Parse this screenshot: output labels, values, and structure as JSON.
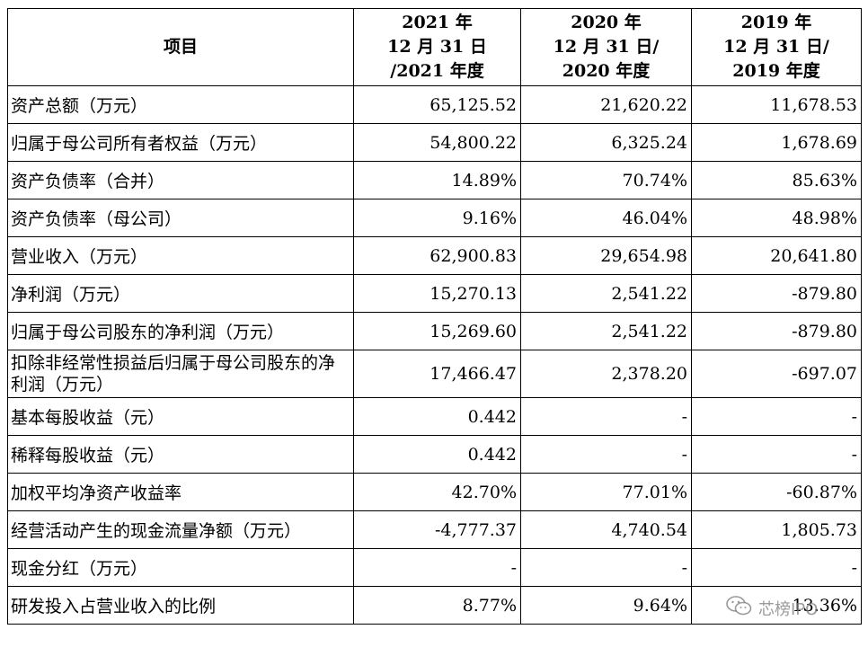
{
  "headers": [
    [
      "项目"
    ],
    [
      "2021 年",
      "12 月 31 日",
      "/2021 年度"
    ],
    [
      "2020 年",
      "12 月 31 日/",
      "2020 年度"
    ],
    [
      "2019 年",
      "12 月 31 日/",
      "2019 年度"
    ]
  ],
  "rows": [
    {
      "label": "资产总额（万元）",
      "v2021": "65,125.52",
      "v2020": "21,620.22",
      "v2019": "11,678.53"
    },
    {
      "label": "归属于母公司所有者权益（万元）",
      "v2021": "54,800.22",
      "v2020": "6,325.24",
      "v2019": "1,678.69"
    },
    {
      "label": "资产负债率（合并）",
      "v2021": "14.89%",
      "v2020": "70.74%",
      "v2019": "85.63%"
    },
    {
      "label": "资产负债率（母公司）",
      "v2021": "9.16%",
      "v2020": "46.04%",
      "v2019": "48.98%"
    },
    {
      "label": "营业收入（万元）",
      "v2021": "62,900.83",
      "v2020": "29,654.98",
      "v2019": "20,641.80"
    },
    {
      "label": "净利润（万元）",
      "v2021": "15,270.13",
      "v2020": "2,541.22",
      "v2019": "-879.80"
    },
    {
      "label": "归属于母公司股东的净利润（万元）",
      "v2021": "15,269.60",
      "v2020": "2,541.22",
      "v2019": "-879.80"
    },
    {
      "label": "扣除非经常性损益后归属于母公司股东的净利润（万元）",
      "v2021": "17,466.47",
      "v2020": "2,378.20",
      "v2019": "-697.07"
    },
    {
      "label": "基本每股收益（元）",
      "v2021": "0.442",
      "v2020": "-",
      "v2019": "-"
    },
    {
      "label": "稀释每股收益（元）",
      "v2021": "0.442",
      "v2020": "-",
      "v2019": "-"
    },
    {
      "label": "加权平均净资产收益率",
      "v2021": "42.70%",
      "v2020": "77.01%",
      "v2019": "-60.87%"
    },
    {
      "label": "经营活动产生的现金流量净额（万元）",
      "v2021": "-4,777.37",
      "v2020": "4,740.54",
      "v2019": "1,805.73"
    },
    {
      "label": "现金分红（万元）",
      "v2021": "-",
      "v2020": "-",
      "v2019": "-"
    },
    {
      "label": "研发投入占营业收入的比例",
      "v2021": "8.77%",
      "v2020": "9.64%",
      "v2019": "13.36%"
    }
  ],
  "watermark": {
    "text": "芯榜IPO",
    "icon": "wechat-icon"
  }
}
